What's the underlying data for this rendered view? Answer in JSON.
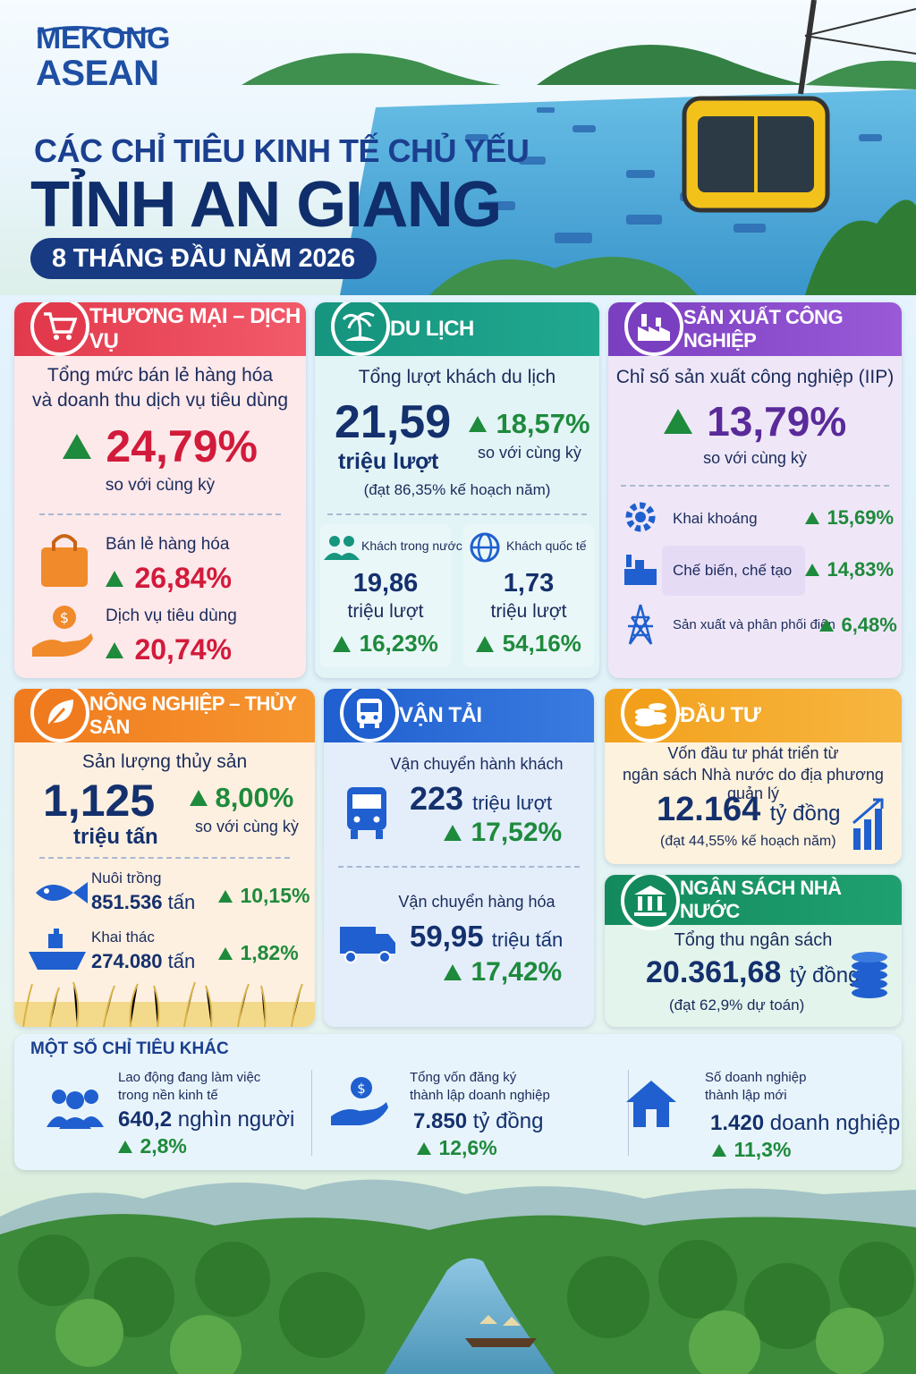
{
  "brand": {
    "line1": "MEKONG",
    "line2": "ASEAN"
  },
  "header": {
    "title1": "CÁC CHỈ TIÊU KINH TẾ CHỦ YẾU",
    "title2": "TỈNH AN GIANG",
    "period": "8 THÁNG ĐẦU NĂM 2026"
  },
  "trade": {
    "title": "THƯƠNG MẠI – DỊCH VỤ",
    "main_label_1": "Tổng mức bán lẻ hàng hóa",
    "main_label_2": "và doanh thu dịch vụ tiêu dùng",
    "main_value": "24,79%",
    "main_note": "so với cùng kỳ",
    "retail_label": "Bán lẻ hàng hóa",
    "retail_value": "26,84%",
    "service_label": "Dịch vụ tiêu dùng",
    "service_value": "20,74%"
  },
  "tourism": {
    "title": "DU LỊCH",
    "main_label": "Tổng lượt khách du lịch",
    "main_value": "21,59",
    "main_unit": "triệu lượt",
    "growth": "18,57%",
    "growth_note": "so với cùng kỳ",
    "plan_note": "(đạt 86,35% kế hoạch năm)",
    "domestic_label": "Khách trong nước",
    "domestic_value": "19,86",
    "domestic_unit": "triệu lượt",
    "domestic_growth": "16,23%",
    "intl_label": "Khách quốc tế",
    "intl_value": "1,73",
    "intl_unit": "triệu lượt",
    "intl_growth": "54,16%"
  },
  "industry": {
    "title": "SẢN XUẤT CÔNG NGHIỆP",
    "main_label": "Chỉ số sản xuất công nghiệp (IIP)",
    "main_value": "13,79%",
    "main_note": "so với cùng kỳ",
    "rows": [
      {
        "label": "Khai khoáng",
        "value": "15,69%"
      },
      {
        "label": "Chế biến, chế tạo",
        "value": "14,83%"
      },
      {
        "label": "Sản xuất và phân phối điện",
        "value": "6,48%"
      }
    ]
  },
  "agriculture": {
    "title": "NÔNG NGHIỆP – THỦY SẢN",
    "main_label": "Sản lượng thủy sản",
    "main_value": "1,125",
    "main_unit": "triệu tấn",
    "growth": "8,00%",
    "growth_note": "so với cùng kỳ",
    "farm_label": "Nuôi trồng",
    "farm_value": "851.536",
    "farm_unit": "tấn",
    "farm_growth": "10,15%",
    "catch_label": "Khai thác",
    "catch_value": "274.080",
    "catch_unit": "tấn",
    "catch_growth": "1,82%"
  },
  "transport": {
    "title": "VẬN TẢI",
    "pass_label": "Vận chuyển hành khách",
    "pass_value": "223",
    "pass_unit": "triệu lượt",
    "pass_growth": "17,52%",
    "cargo_label": "Vận chuyển hàng hóa",
    "cargo_value": "59,95",
    "cargo_unit": "triệu tấn",
    "cargo_growth": "17,42%"
  },
  "investment": {
    "title": "ĐẦU TƯ",
    "label_1": "Vốn đầu tư phát triển từ",
    "label_2": "ngân sách Nhà nước do địa phương quản lý",
    "value": "12.164",
    "unit": "tỷ đồng",
    "note": "(đạt 44,55% kế hoạch năm)"
  },
  "budget": {
    "title": "NGÂN SÁCH NHÀ NƯỚC",
    "label": "Tổng thu ngân sách",
    "value": "20.361,68",
    "unit": "tỷ đồng",
    "note": "(đạt 62,9% dự toán)"
  },
  "other": {
    "title": "MỘT SỐ CHỈ TIÊU KHÁC",
    "items": [
      {
        "label_1": "Lao động đang làm việc",
        "label_2": "trong nền kinh tế",
        "value": "640,2",
        "unit": "nghìn người",
        "growth": "2,8%"
      },
      {
        "label_1": "Tổng vốn đăng ký",
        "label_2": "thành lập doanh nghiệp",
        "value": "7.850",
        "unit": "tỷ đồng",
        "growth": "12,6%"
      },
      {
        "label_1": "Số doanh nghiệp",
        "label_2": "thành lập mới",
        "value": "1.420",
        "unit": "doanh nghiệp",
        "growth": "11,3%"
      }
    ]
  },
  "colors": {
    "navy": "#14306d",
    "trade_red": "#e23a4c",
    "tourism_teal": "#16957f",
    "industry_purple": "#7a3fc0",
    "agri_orange": "#f07a1e",
    "transport_blue": "#1f5fcf",
    "invest_gold": "#f2a01b",
    "budget_green": "#138a5d",
    "growth_green": "#1e8a3c",
    "value_red": "#d21a3a"
  }
}
